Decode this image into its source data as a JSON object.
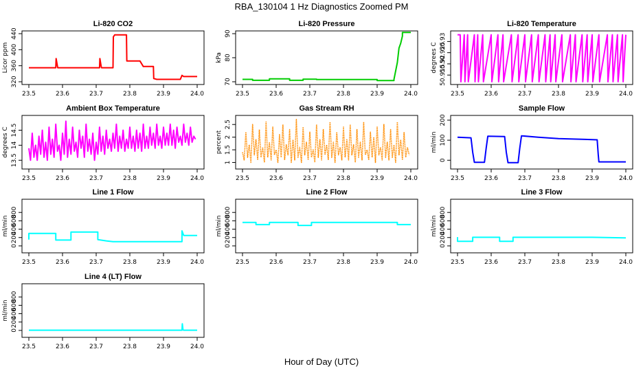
{
  "figure": {
    "title": "RBA_130104  1 Hz Diagnostics Zoomed PM",
    "xlabel": "Hour of Day (UTC)"
  },
  "chart_data": [
    {
      "type": "line",
      "title": "Li-820 CO2",
      "ylabel": "Licor ppm",
      "color": "#ff0000",
      "xlim": [
        23.5,
        24.0
      ],
      "ylim": [
        320,
        440
      ],
      "xticks": [
        "23.5",
        "23.6",
        "23.7",
        "23.8",
        "23.9",
        "24.0"
      ],
      "yticks": [
        320,
        360,
        400,
        440
      ],
      "series": [
        {
          "name": "CO2",
          "x": [
            23.5,
            23.58,
            23.581,
            23.585,
            23.586,
            23.71,
            23.711,
            23.715,
            23.716,
            23.75,
            23.751,
            23.755,
            23.79,
            23.791,
            23.8,
            23.81,
            23.83,
            23.84,
            23.85,
            23.86,
            23.87,
            23.871,
            23.88,
            23.9,
            23.95,
            23.955,
            23.96,
            23.961,
            24.0
          ],
          "y": [
            355,
            355,
            378,
            358,
            355,
            355,
            378,
            358,
            355,
            355,
            432,
            437,
            437,
            372,
            372,
            372,
            372,
            358,
            358,
            358,
            358,
            328,
            326,
            326,
            326,
            336,
            333,
            333,
            333
          ]
        }
      ]
    },
    {
      "type": "line",
      "title": "Li-820 Pressure",
      "ylabel": "kPa",
      "color": "#00cc00",
      "xlim": [
        23.5,
        24.0
      ],
      "ylim": [
        70,
        90
      ],
      "xticks": [
        "23.5",
        "23.6",
        "23.7",
        "23.8",
        "23.9",
        "24.0"
      ],
      "yticks": [
        70,
        80,
        90
      ],
      "series": [
        {
          "name": "Pressure",
          "x": [
            23.5,
            23.53,
            23.53,
            23.58,
            23.58,
            23.64,
            23.64,
            23.68,
            23.68,
            23.72,
            23.72,
            23.9,
            23.9,
            23.95,
            23.95,
            23.96,
            23.965,
            23.97,
            23.975,
            23.975,
            24.0
          ],
          "y": [
            71,
            71,
            70.6,
            70.6,
            71.2,
            71.2,
            70.6,
            70.6,
            71.1,
            71.1,
            70.9,
            70.9,
            70.5,
            70.5,
            71,
            78,
            84,
            86,
            89,
            90.5,
            90.5
          ]
        }
      ]
    },
    {
      "type": "line",
      "title": "Li-820 Temperature",
      "ylabel": "degrees C",
      "color": "#ff00ff",
      "xlim": [
        23.5,
        24.0
      ],
      "ylim": [
        50.912,
        50.9335
      ],
      "xticks": [
        "23.5",
        "23.6",
        "23.7",
        "23.8",
        "23.9",
        "24.0"
      ],
      "yticks": [
        50.915,
        50.92,
        50.925,
        50.93
      ],
      "series": [
        {
          "name": "Temperature",
          "x": [
            23.5,
            23.508,
            23.51,
            23.52,
            23.522,
            23.53,
            23.532,
            23.55,
            23.552,
            23.56,
            23.562,
            23.575,
            23.577,
            23.6,
            23.602,
            23.62,
            23.622,
            23.635,
            23.637,
            23.66,
            23.662,
            23.68,
            23.682,
            23.7,
            23.702,
            23.72,
            23.722,
            23.74,
            23.742,
            23.76,
            23.762,
            23.775,
            23.777,
            23.79,
            23.792,
            23.81,
            23.812,
            23.835,
            23.837,
            23.85,
            23.852,
            23.87,
            23.872,
            23.885,
            23.887,
            23.9,
            23.902,
            23.92,
            23.922,
            23.945,
            23.947,
            23.96,
            23.962,
            23.975,
            23.977,
            23.99,
            23.992,
            24.0
          ],
          "y": [
            50.933,
            50.933,
            50.912,
            50.933,
            50.912,
            50.933,
            50.912,
            50.933,
            50.912,
            50.933,
            50.912,
            50.933,
            50.912,
            50.933,
            50.912,
            50.933,
            50.912,
            50.933,
            50.912,
            50.933,
            50.912,
            50.933,
            50.912,
            50.933,
            50.912,
            50.933,
            50.912,
            50.933,
            50.912,
            50.933,
            50.912,
            50.933,
            50.912,
            50.933,
            50.912,
            50.933,
            50.912,
            50.933,
            50.912,
            50.933,
            50.912,
            50.933,
            50.912,
            50.933,
            50.912,
            50.933,
            50.912,
            50.933,
            50.912,
            50.933,
            50.912,
            50.933,
            50.912,
            50.933,
            50.912,
            50.933,
            50.912,
            50.933
          ]
        }
      ]
    },
    {
      "type": "line",
      "title": "Ambient Box Temperature",
      "ylabel": "degrees C",
      "color": "#ff00ff",
      "xlim": [
        23.5,
        24.0
      ],
      "ylim": [
        13.3,
        14.9
      ],
      "xticks": [
        "23.5",
        "23.6",
        "23.7",
        "23.8",
        "23.9",
        "24.0"
      ],
      "yticks": [
        13.5,
        14.0,
        14.5
      ],
      "series": [
        {
          "name": "Ambient",
          "x": [
            23.5,
            23.505,
            23.51,
            23.515,
            23.52,
            23.525,
            23.53,
            23.535,
            23.54,
            23.545,
            23.55,
            23.555,
            23.56,
            23.565,
            23.57,
            23.575,
            23.58,
            23.585,
            23.59,
            23.595,
            23.6,
            23.605,
            23.61,
            23.615,
            23.62,
            23.625,
            23.63,
            23.635,
            23.64,
            23.645,
            23.65,
            23.655,
            23.66,
            23.665,
            23.67,
            23.675,
            23.68,
            23.685,
            23.69,
            23.695,
            23.7,
            23.705,
            23.71,
            23.715,
            23.72,
            23.725,
            23.73,
            23.735,
            23.74,
            23.745,
            23.75,
            23.755,
            23.76,
            23.765,
            23.77,
            23.775,
            23.78,
            23.785,
            23.79,
            23.795,
            23.8,
            23.805,
            23.81,
            23.815,
            23.82,
            23.825,
            23.83,
            23.835,
            23.84,
            23.845,
            23.85,
            23.855,
            23.86,
            23.865,
            23.87,
            23.875,
            23.88,
            23.885,
            23.89,
            23.895,
            23.9,
            23.905,
            23.91,
            23.915,
            23.92,
            23.925,
            23.93,
            23.935,
            23.94,
            23.945,
            23.95,
            23.955,
            23.96,
            23.965,
            23.97,
            23.975,
            23.98,
            23.985,
            23.99,
            23.995
          ],
          "y": [
            13.9,
            13.5,
            14.4,
            13.6,
            14.0,
            13.5,
            14.3,
            13.7,
            14.5,
            13.6,
            14.1,
            13.5,
            14.6,
            13.7,
            14.2,
            13.6,
            14.7,
            13.8,
            14.0,
            13.5,
            14.4,
            13.7,
            14.8,
            13.6,
            14.2,
            13.7,
            14.6,
            13.8,
            14.1,
            13.6,
            14.5,
            13.9,
            14.3,
            13.6,
            14.7,
            13.8,
            14.2,
            13.7,
            14.4,
            13.5,
            14.1,
            13.7,
            14.6,
            13.8,
            14.3,
            13.7,
            14.5,
            13.9,
            14.2,
            13.8,
            14.4,
            13.9,
            14.7,
            13.8,
            14.3,
            13.9,
            14.5,
            13.8,
            14.2,
            13.9,
            14.6,
            13.9,
            14.3,
            13.8,
            14.5,
            13.9,
            14.4,
            13.8,
            14.7,
            13.9,
            14.3,
            13.9,
            14.6,
            14.0,
            14.4,
            13.9,
            14.7,
            14.0,
            14.3,
            13.9,
            14.6,
            14.0,
            14.4,
            14.0,
            14.7,
            14.0,
            14.5,
            13.9,
            14.6,
            14.1,
            14.3,
            14.0,
            14.7,
            14.1,
            14.4,
            14.0,
            14.6,
            14.1,
            14.3,
            14.2
          ]
        }
      ]
    },
    {
      "type": "line",
      "title": "Gas Stream RH",
      "ylabel": "percent",
      "color": "#ff8c00",
      "xlim": [
        23.5,
        24.0
      ],
      "ylim": [
        0.85,
        2.75
      ],
      "xticks": [
        "23.5",
        "23.6",
        "23.7",
        "23.8",
        "23.9",
        "24.0"
      ],
      "yticks": [
        1.0,
        1.5,
        2.0,
        2.5
      ],
      "series": [
        {
          "name": "RH",
          "x": [
            23.5,
            23.505,
            23.51,
            23.515,
            23.52,
            23.525,
            23.53,
            23.535,
            23.54,
            23.545,
            23.55,
            23.555,
            23.56,
            23.565,
            23.57,
            23.575,
            23.58,
            23.585,
            23.59,
            23.595,
            23.6,
            23.605,
            23.61,
            23.615,
            23.62,
            23.625,
            23.63,
            23.635,
            23.64,
            23.645,
            23.65,
            23.655,
            23.66,
            23.665,
            23.67,
            23.675,
            23.68,
            23.685,
            23.69,
            23.695,
            23.7,
            23.705,
            23.71,
            23.715,
            23.72,
            23.725,
            23.73,
            23.735,
            23.74,
            23.745,
            23.75,
            23.755,
            23.76,
            23.765,
            23.77,
            23.775,
            23.78,
            23.785,
            23.79,
            23.795,
            23.8,
            23.805,
            23.81,
            23.815,
            23.82,
            23.825,
            23.83,
            23.835,
            23.84,
            23.845,
            23.85,
            23.855,
            23.86,
            23.865,
            23.87,
            23.875,
            23.88,
            23.885,
            23.89,
            23.895,
            23.9,
            23.905,
            23.91,
            23.915,
            23.92,
            23.925,
            23.93,
            23.935,
            23.94,
            23.945,
            23.95,
            23.955,
            23.96,
            23.965,
            23.97,
            23.975,
            23.98,
            23.985,
            23.99,
            23.995
          ],
          "y": [
            1.4,
            1.1,
            2.2,
            1.2,
            1.7,
            1.0,
            2.5,
            1.3,
            1.9,
            1.1,
            2.3,
            1.2,
            1.6,
            1.0,
            2.6,
            1.2,
            1.8,
            1.1,
            2.4,
            1.3,
            1.5,
            1.0,
            2.1,
            1.2,
            2.5,
            1.1,
            1.7,
            1.3,
            2.3,
            1.0,
            1.9,
            1.1,
            2.7,
            1.2,
            1.6,
            1.0,
            2.4,
            1.3,
            1.8,
            1.1,
            2.2,
            1.2,
            1.5,
            1.0,
            2.5,
            1.2,
            1.9,
            1.1,
            2.3,
            1.3,
            1.7,
            1.1,
            2.6,
            1.2,
            1.8,
            1.0,
            2.2,
            1.3,
            1.6,
            1.1,
            2.4,
            1.2,
            1.9,
            1.1,
            2.5,
            1.3,
            1.7,
            1.0,
            2.3,
            1.2,
            1.8,
            1.1,
            2.6,
            1.3,
            1.5,
            1.1,
            2.2,
            1.2,
            2.0,
            1.0,
            2.4,
            1.3,
            1.6,
            1.1,
            2.5,
            1.2,
            1.8,
            1.1,
            2.3,
            1.2,
            1.7,
            1.0,
            2.6,
            1.3,
            1.9,
            1.1,
            2.2,
            1.2,
            1.6,
            1.3
          ]
        }
      ]
    },
    {
      "type": "line",
      "title": "Sample Flow",
      "ylabel": "ml/min",
      "color": "#0000ff",
      "xlim": [
        23.5,
        24.0
      ],
      "ylim": [
        -30,
        210
      ],
      "xticks": [
        "23.5",
        "23.6",
        "23.7",
        "23.8",
        "23.9",
        "24.0"
      ],
      "yticks": [
        0,
        100,
        200
      ],
      "series": [
        {
          "name": "Sample Flow",
          "x": [
            23.5,
            23.54,
            23.545,
            23.55,
            23.58,
            23.585,
            23.59,
            23.64,
            23.645,
            23.65,
            23.68,
            23.685,
            23.69,
            23.74,
            23.8,
            23.88,
            23.915,
            23.918,
            23.92,
            24.0
          ],
          "y": [
            115,
            112,
            40,
            -10,
            -10,
            60,
            120,
            118,
            40,
            -12,
            -12,
            60,
            122,
            115,
            108,
            104,
            102,
            30,
            -8,
            -8
          ]
        }
      ]
    },
    {
      "type": "line",
      "title": "Line 1 Flow",
      "ylabel": "ml/min",
      "color": "#00ffff",
      "xlim": [
        23.5,
        24.0
      ],
      "ylim": [
        -100,
        1050
      ],
      "xticks": [
        "23.5",
        "23.6",
        "23.7",
        "23.8",
        "23.9",
        "24.0"
      ],
      "yticks": [
        0,
        200,
        400,
        600,
        800
      ],
      "series": [
        {
          "name": "Line 1",
          "x": [
            23.5,
            23.5,
            23.58,
            23.58,
            23.625,
            23.625,
            23.705,
            23.705,
            23.73,
            23.75,
            23.955,
            23.955,
            23.96,
            24.0
          ],
          "y": [
            150,
            300,
            300,
            140,
            140,
            330,
            330,
            150,
            120,
            100,
            100,
            360,
            250,
            250
          ]
        }
      ]
    },
    {
      "type": "line",
      "title": "Line 2 Flow",
      "ylabel": "ml/min",
      "color": "#00ffff",
      "xlim": [
        23.5,
        24.0
      ],
      "ylim": [
        -100,
        1050
      ],
      "xticks": [
        "23.5",
        "23.6",
        "23.7",
        "23.8",
        "23.9",
        "24.0"
      ],
      "yticks": [
        0,
        200,
        400,
        600,
        800
      ],
      "series": [
        {
          "name": "Line 2",
          "x": [
            23.5,
            23.54,
            23.54,
            23.58,
            23.58,
            23.665,
            23.665,
            23.705,
            23.705,
            23.96,
            23.96,
            24.0
          ],
          "y": [
            560,
            560,
            510,
            510,
            560,
            560,
            490,
            490,
            560,
            560,
            510,
            510
          ]
        }
      ]
    },
    {
      "type": "line",
      "title": "Line 3 Flow",
      "ylabel": "ml/min",
      "color": "#00ffff",
      "xlim": [
        23.5,
        24.0
      ],
      "ylim": [
        -100,
        1050
      ],
      "xticks": [
        "23.5",
        "23.6",
        "23.7",
        "23.8",
        "23.9",
        "24.0"
      ],
      "yticks": [
        0,
        200,
        400,
        600,
        800
      ],
      "series": [
        {
          "name": "Line 3",
          "x": [
            23.5,
            23.5,
            23.505,
            23.545,
            23.545,
            23.625,
            23.625,
            23.665,
            23.665,
            23.9,
            24.0
          ],
          "y": [
            210,
            110,
            110,
            110,
            205,
            205,
            110,
            110,
            205,
            205,
            190
          ]
        }
      ]
    },
    {
      "type": "line",
      "title": "Line 4 (LT) Flow",
      "ylabel": "ml/min",
      "color": "#00ffff",
      "xlim": [
        23.5,
        24.0
      ],
      "ylim": [
        -100,
        1050
      ],
      "xticks": [
        "23.5",
        "23.6",
        "23.7",
        "23.8",
        "23.9",
        "24.0"
      ],
      "yticks": [
        0,
        200,
        400,
        600,
        800
      ],
      "series": [
        {
          "name": "Line 4",
          "x": [
            23.5,
            23.955,
            23.956,
            23.958,
            23.96,
            24.0
          ],
          "y": [
            5,
            5,
            160,
            10,
            5,
            5
          ]
        }
      ]
    }
  ]
}
